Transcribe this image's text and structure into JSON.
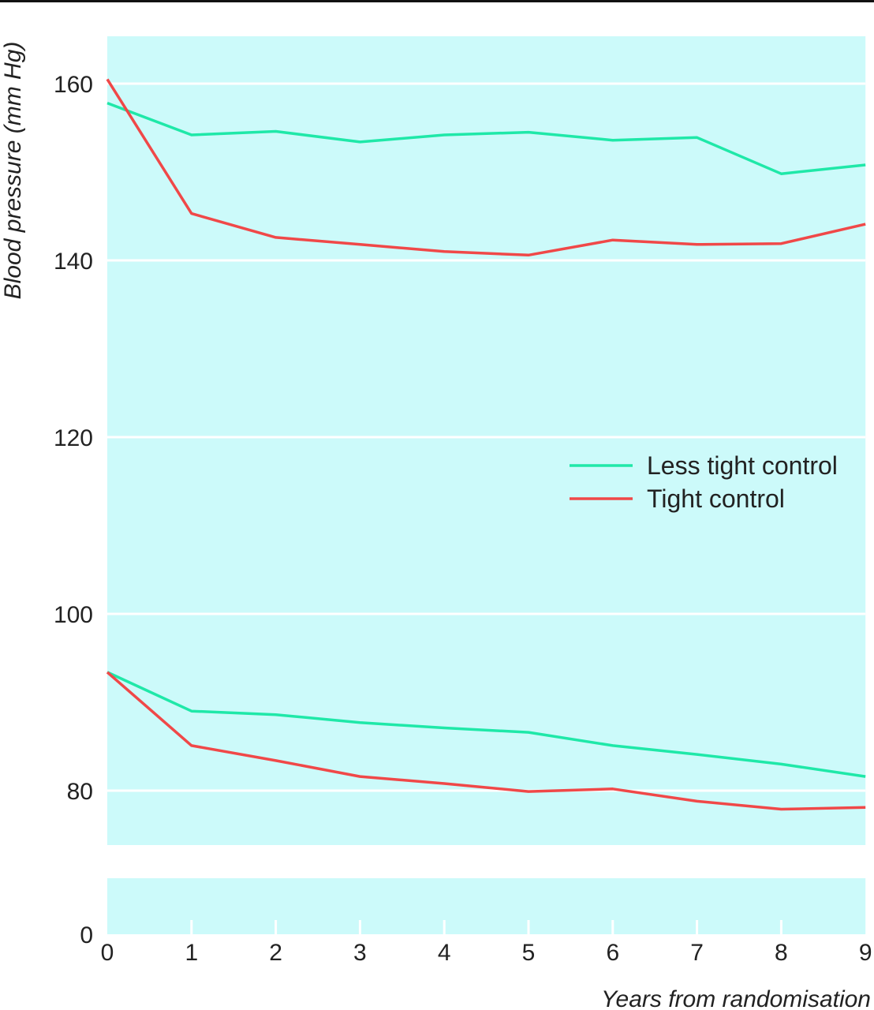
{
  "chart_data": {
    "type": "line",
    "xlabel": "Years from randomisation",
    "ylabel": "Blood pressure (mm Hg)",
    "x": [
      0,
      1,
      2,
      3,
      4,
      5,
      6,
      7,
      8,
      9
    ],
    "x_ticks": [
      "0",
      "1",
      "2",
      "3",
      "4",
      "5",
      "6",
      "7",
      "8",
      "9"
    ],
    "y_ticks": [
      "160",
      "140",
      "120",
      "100",
      "80",
      "0"
    ],
    "y_tick_values": [
      160,
      140,
      120,
      100,
      80,
      0
    ],
    "ylim": [
      0,
      165
    ],
    "y_axis_break": [
      70.5,
      74.5
    ],
    "grid": true,
    "legend_position": "right-middle",
    "background_color": "#ccfafa",
    "series": [
      {
        "name": "Less tight control",
        "group": "systolic",
        "color": "#1fe8a8",
        "values": [
          157.8,
          154.2,
          154.6,
          153.4,
          154.2,
          154.5,
          153.6,
          153.9,
          149.8,
          150.8
        ]
      },
      {
        "name": "Tight control",
        "group": "systolic",
        "color": "#f04848",
        "values": [
          160.5,
          145.3,
          142.6,
          141.8,
          141.0,
          140.6,
          142.3,
          141.8,
          141.9,
          144.1
        ]
      },
      {
        "name": "Less tight control",
        "group": "diastolic",
        "color": "#1fe8a8",
        "values": [
          93.4,
          89.0,
          88.6,
          87.7,
          87.1,
          86.6,
          85.1,
          84.1,
          83.0,
          81.6
        ]
      },
      {
        "name": "Tight control",
        "group": "diastolic",
        "color": "#f04848",
        "values": [
          93.4,
          85.1,
          83.4,
          81.6,
          80.8,
          79.9,
          80.2,
          78.8,
          77.9,
          78.1
        ]
      }
    ],
    "legend": [
      {
        "label": "Less tight control",
        "color": "#1fe8a8"
      },
      {
        "label": "Tight control",
        "color": "#f04848"
      }
    ]
  }
}
